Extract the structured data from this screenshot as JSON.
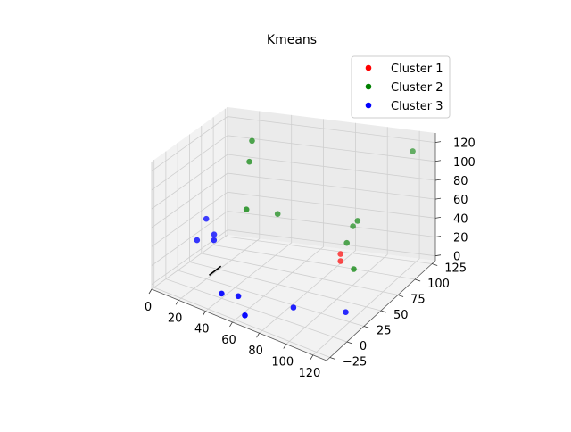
{
  "chart_data": {
    "type": "scatter",
    "title": "Kmeans",
    "xlabel": "",
    "ylabel": "",
    "zlabel": "",
    "xlim": [
      0,
      130
    ],
    "ylim": [
      -30,
      130
    ],
    "zlim": [
      -5,
      130
    ],
    "x_ticks": [
      "0",
      "20",
      "40",
      "60",
      "80",
      "100",
      "120"
    ],
    "y_ticks": [
      "−25",
      "0",
      "25",
      "50",
      "75",
      "100",
      "125"
    ],
    "z_ticks": [
      "0",
      "20",
      "40",
      "60",
      "80",
      "100",
      "120"
    ],
    "grid": true,
    "legend_position": "upper-right",
    "series": [
      {
        "name": "Cluster 1",
        "color": "#ff0000",
        "points": [
          {
            "x": 92,
            "y": 75,
            "z": 18
          },
          {
            "x": 90,
            "y": 80,
            "z": 22
          }
        ]
      },
      {
        "name": "Cluster 2",
        "color": "#008000",
        "points": [
          {
            "x": 30,
            "y": 85,
            "z": 120
          },
          {
            "x": 30,
            "y": 80,
            "z": 100
          },
          {
            "x": 35,
            "y": 60,
            "z": 60
          },
          {
            "x": 45,
            "y": 90,
            "z": 45
          },
          {
            "x": 90,
            "y": 90,
            "z": 28
          },
          {
            "x": 105,
            "y": 65,
            "z": 20
          },
          {
            "x": 90,
            "y": 100,
            "z": 40
          },
          {
            "x": 95,
            "y": 95,
            "z": 50
          },
          {
            "x": 120,
            "y": 120,
            "z": 115
          }
        ]
      },
      {
        "name": "Cluster 3",
        "color": "#0000ff",
        "points": [
          {
            "x": 5,
            "y": 50,
            "z": 20
          },
          {
            "x": 8,
            "y": 60,
            "z": 40
          },
          {
            "x": 15,
            "y": 55,
            "z": 28
          },
          {
            "x": 20,
            "y": 40,
            "z": 30
          },
          {
            "x": 40,
            "y": 0,
            "z": 0
          },
          {
            "x": 50,
            "y": 5,
            "z": 0
          },
          {
            "x": 65,
            "y": -20,
            "z": 0
          },
          {
            "x": 85,
            "y": 15,
            "z": 0
          },
          {
            "x": 115,
            "y": 30,
            "z": 0
          }
        ]
      }
    ]
  }
}
